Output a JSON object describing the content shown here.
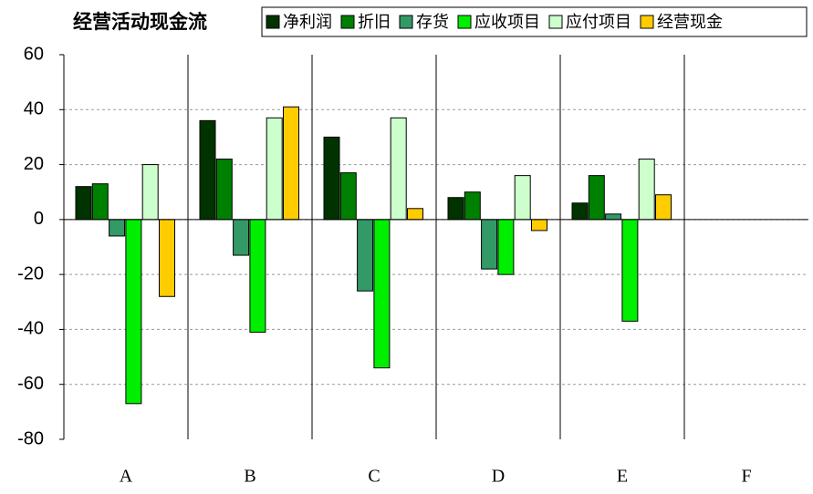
{
  "chart_data": {
    "type": "bar",
    "title": "经营活动现金流",
    "categories": [
      "A",
      "B",
      "C",
      "D",
      "E",
      "F"
    ],
    "series": [
      {
        "name": "净利润",
        "color": "#003300",
        "values": [
          12,
          36,
          30,
          8,
          6,
          null
        ]
      },
      {
        "name": "折旧",
        "color": "#008000",
        "values": [
          13,
          22,
          17,
          10,
          16,
          null
        ]
      },
      {
        "name": "存货",
        "color": "#339966",
        "values": [
          -6,
          -13,
          -26,
          -18,
          2,
          null
        ]
      },
      {
        "name": "应收项目",
        "color": "#00ee00",
        "values": [
          -67,
          -41,
          -54,
          -20,
          -37,
          null
        ]
      },
      {
        "name": "应付项目",
        "color": "#ccffcc",
        "values": [
          20,
          37,
          37,
          16,
          22,
          null
        ]
      },
      {
        "name": "经营现金",
        "color": "#ffcc00",
        "values": [
          -28,
          41,
          4,
          -4,
          9,
          null
        ]
      }
    ],
    "ylim": [
      -80,
      60
    ],
    "yticks": [
      60,
      40,
      20,
      0,
      -20,
      -40,
      -60,
      -80
    ],
    "grid": true
  }
}
